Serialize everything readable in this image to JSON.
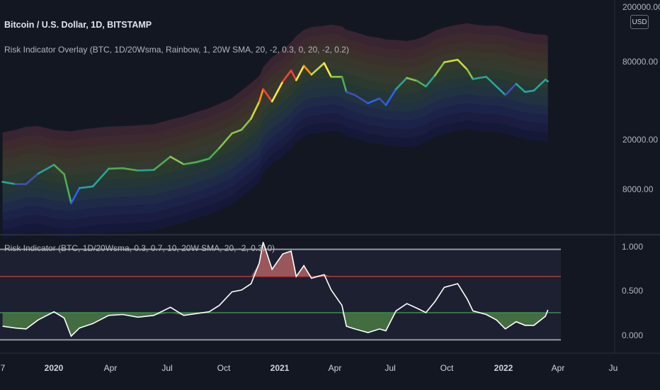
{
  "chart_header": {
    "title": "Bitcoin / U.S. Dollar, 1D, BITSTAMP",
    "overlay_label": "Risk Indicator Overlay (BTC, 1D/20Wsma, Rainbow, 1, 20W SMA, 20, -2, 0.3, 0, 20, -2, 0.2)",
    "indicator_label": "Risk Indicator (BTC, 1D/20Wsma, 0.3, 0.7, 10, 20W SMA, 20, -2, 0.3, 0)",
    "currency_button": "USD"
  },
  "colors": {
    "background": "#131722",
    "price_line_scale": [
      "#2962ff",
      "#3f51b5",
      "#26a69a",
      "#4caf50",
      "#8bc34a",
      "#cddc39",
      "#ffeb3b",
      "#ff9800",
      "#f44336"
    ],
    "risk_line": "#ffffff",
    "upper_threshold": "#b33b3b",
    "lower_threshold": "#3e8e4e",
    "bound_lines": "#9598a1"
  },
  "price_axis": {
    "scale": "log",
    "ticks": [
      "200000.00",
      "80000.00",
      "20000.00",
      "8000.00"
    ]
  },
  "risk_axis": {
    "ticks": [
      "1.000",
      "0.500",
      "0.000"
    ],
    "upper_threshold": 0.7,
    "lower_threshold": 0.3,
    "range": [
      0,
      1
    ]
  },
  "time_axis": {
    "ticks": [
      {
        "label": "7",
        "bold": false
      },
      {
        "label": "2020",
        "bold": true
      },
      {
        "label": "Apr",
        "bold": false
      },
      {
        "label": "Jul",
        "bold": false
      },
      {
        "label": "Oct",
        "bold": false
      },
      {
        "label": "2021",
        "bold": true
      },
      {
        "label": "Apr",
        "bold": false
      },
      {
        "label": "Jul",
        "bold": false
      },
      {
        "label": "Oct",
        "bold": false
      },
      {
        "label": "2022",
        "bold": true
      },
      {
        "label": "Apr",
        "bold": false
      },
      {
        "label": "Ju",
        "bold": false
      }
    ]
  },
  "chart_data": {
    "type": "line",
    "price_series": {
      "dates": [
        "2019-11-25",
        "2019-12-15",
        "2020-01-01",
        "2020-01-20",
        "2020-02-14",
        "2020-03-01",
        "2020-03-12",
        "2020-03-25",
        "2020-04-15",
        "2020-05-10",
        "2020-06-01",
        "2020-06-25",
        "2020-07-20",
        "2020-08-15",
        "2020-09-05",
        "2020-09-25",
        "2020-10-15",
        "2020-10-31",
        "2020-11-20",
        "2020-12-05",
        "2020-12-20",
        "2021-01-02",
        "2021-01-08",
        "2021-01-22",
        "2021-02-08",
        "2021-02-21",
        "2021-03-01",
        "2021-03-13",
        "2021-03-25",
        "2021-04-14",
        "2021-04-25",
        "2021-05-12",
        "2021-05-19",
        "2021-06-01",
        "2021-06-22",
        "2021-07-10",
        "2021-07-20",
        "2021-08-05",
        "2021-08-22",
        "2021-09-07",
        "2021-09-21",
        "2021-10-05",
        "2021-10-20",
        "2021-11-10",
        "2021-11-25",
        "2021-12-04",
        "2021-12-25",
        "2022-01-10",
        "2022-01-24",
        "2022-02-10",
        "2022-02-24",
        "2022-03-10",
        "2022-03-28",
        "2022-04-01"
      ],
      "values": [
        7500,
        7200,
        7200,
        8700,
        10200,
        8600,
        5100,
        6700,
        6900,
        9500,
        9600,
        9200,
        9300,
        11800,
        10300,
        10700,
        11400,
        13800,
        18000,
        19200,
        23500,
        32000,
        40000,
        32000,
        46000,
        56000,
        47000,
        61000,
        52000,
        64000,
        50000,
        50000,
        38000,
        36000,
        31000,
        33800,
        30000,
        40000,
        49000,
        46500,
        42000,
        51000,
        65000,
        68000,
        57000,
        48000,
        50000,
        42000,
        36000,
        44000,
        38000,
        39000,
        47500,
        46000
      ],
      "risk_colors": [
        0.2,
        0.15,
        0.15,
        0.3,
        0.4,
        0.35,
        0.05,
        0.2,
        0.25,
        0.35,
        0.35,
        0.3,
        0.35,
        0.45,
        0.35,
        0.38,
        0.4,
        0.45,
        0.55,
        0.55,
        0.65,
        0.85,
        1.0,
        0.8,
        0.95,
        1.0,
        0.75,
        0.85,
        0.65,
        0.7,
        0.5,
        0.35,
        0.15,
        0.1,
        0.05,
        0.1,
        0.05,
        0.3,
        0.45,
        0.4,
        0.3,
        0.45,
        0.6,
        0.65,
        0.45,
        0.3,
        0.3,
        0.25,
        0.15,
        0.25,
        0.2,
        0.2,
        0.3,
        0.3
      ]
    },
    "risk_series": {
      "dates": [
        "2019-11-25",
        "2019-12-15",
        "2020-01-01",
        "2020-01-20",
        "2020-02-14",
        "2020-03-01",
        "2020-03-12",
        "2020-03-25",
        "2020-04-15",
        "2020-05-10",
        "2020-06-01",
        "2020-06-25",
        "2020-07-20",
        "2020-08-15",
        "2020-09-05",
        "2020-09-25",
        "2020-10-15",
        "2020-10-31",
        "2020-11-20",
        "2020-12-05",
        "2020-12-20",
        "2021-01-02",
        "2021-01-08",
        "2021-01-22",
        "2021-02-08",
        "2021-02-21",
        "2021-03-01",
        "2021-03-13",
        "2021-03-25",
        "2021-04-14",
        "2021-04-25",
        "2021-05-12",
        "2021-05-19",
        "2021-06-01",
        "2021-06-22",
        "2021-07-10",
        "2021-07-20",
        "2021-08-05",
        "2021-08-22",
        "2021-09-07",
        "2021-09-21",
        "2021-10-05",
        "2021-10-20",
        "2021-11-10",
        "2021-11-25",
        "2021-12-04",
        "2021-12-25",
        "2022-01-10",
        "2022-01-24",
        "2022-02-10",
        "2022-02-24",
        "2022-03-10",
        "2022-03-28",
        "2022-04-01"
      ],
      "values": [
        0.15,
        0.13,
        0.12,
        0.22,
        0.31,
        0.24,
        0.04,
        0.13,
        0.18,
        0.27,
        0.28,
        0.25,
        0.27,
        0.36,
        0.27,
        0.29,
        0.31,
        0.38,
        0.53,
        0.55,
        0.62,
        0.85,
        1.08,
        0.78,
        0.95,
        0.98,
        0.7,
        0.82,
        0.68,
        0.72,
        0.55,
        0.38,
        0.15,
        0.12,
        0.08,
        0.12,
        0.1,
        0.32,
        0.4,
        0.35,
        0.3,
        0.42,
        0.58,
        0.62,
        0.45,
        0.32,
        0.28,
        0.22,
        0.12,
        0.2,
        0.16,
        0.16,
        0.26,
        0.33
      ]
    },
    "date_range": [
      "2019-11-21",
      "2022-07-15"
    ],
    "price_ylim": [
      3000,
      200000
    ],
    "risk_ylim": [
      -0.1,
      1.13
    ]
  }
}
